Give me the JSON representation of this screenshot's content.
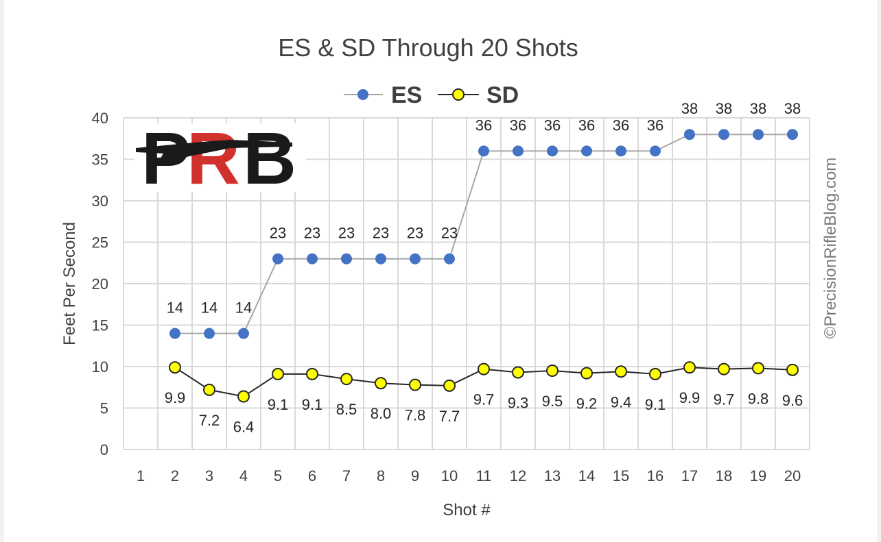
{
  "watermark": "©PrecisionRifleBlog.com",
  "logo": "PRB",
  "colors": {
    "es_line": "#a6a6a6",
    "es_marker": "#4472c4",
    "sd_line": "#262626",
    "sd_marker": "#ffff00",
    "grid": "#d9d9d9",
    "logo_dark": "#1a1a1a",
    "logo_red": "#d0312d"
  },
  "chart_data": {
    "type": "line",
    "title": "ES & SD Through 20 Shots",
    "xlabel": "Shot #",
    "ylabel": "Feet Per Second",
    "categories": [
      "1",
      "2",
      "3",
      "4",
      "5",
      "6",
      "7",
      "8",
      "9",
      "10",
      "11",
      "12",
      "13",
      "14",
      "15",
      "16",
      "17",
      "18",
      "19",
      "20"
    ],
    "ylim": [
      0,
      40
    ],
    "yticks": [
      "0",
      "5",
      "10",
      "15",
      "20",
      "25",
      "30",
      "35",
      "40"
    ],
    "grid": true,
    "legend_position": "top",
    "series": [
      {
        "name": "ES",
        "values": [
          null,
          14,
          14,
          14,
          23,
          23,
          23,
          23,
          23,
          23,
          36,
          36,
          36,
          36,
          36,
          36,
          38,
          38,
          38,
          38
        ],
        "labels": [
          null,
          "14",
          "14",
          "14",
          "23",
          "23",
          "23",
          "23",
          "23",
          "23",
          "36",
          "36",
          "36",
          "36",
          "36",
          "36",
          "38",
          "38",
          "38",
          "38"
        ],
        "label_position": "above"
      },
      {
        "name": "SD",
        "values": [
          null,
          9.9,
          7.2,
          6.4,
          9.1,
          9.1,
          8.5,
          8.0,
          7.8,
          7.7,
          9.7,
          9.3,
          9.5,
          9.2,
          9.4,
          9.1,
          9.9,
          9.7,
          9.8,
          9.6
        ],
        "labels": [
          null,
          "9.9",
          "7.2",
          "6.4",
          "9.1",
          "9.1",
          "8.5",
          "8.0",
          "7.8",
          "7.7",
          "9.7",
          "9.3",
          "9.5",
          "9.2",
          "9.4",
          "9.1",
          "9.9",
          "9.7",
          "9.8",
          "9.6"
        ],
        "label_position": "below"
      }
    ]
  }
}
